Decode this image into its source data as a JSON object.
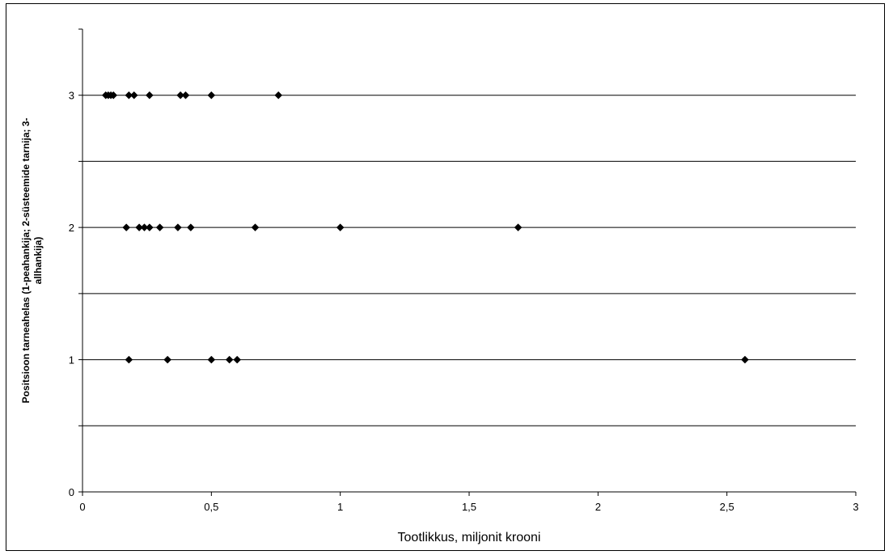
{
  "chart_data": {
    "type": "scatter",
    "xlabel": "Tootlikkus, miljonit krooni",
    "ylabel_lines": [
      "Positsioon tarneahelas (1-peahankija; 2-süsteemide tarnija; 3-",
      "allhankija)"
    ],
    "xlim": [
      0,
      3
    ],
    "ylim": [
      0,
      3.5
    ],
    "x_ticks": [
      0,
      0.5,
      1,
      1.5,
      2,
      2.5,
      3
    ],
    "x_tick_labels": [
      "0",
      "0,5",
      "1",
      "1,5",
      "2",
      "2,5",
      "3"
    ],
    "y_ticks": [
      0,
      1,
      2,
      3
    ],
    "y_tick_labels": [
      "0",
      "1",
      "2",
      "3"
    ],
    "gridlines_y": [
      0.5,
      1,
      1.5,
      2,
      2.5,
      3
    ],
    "grid": true,
    "marker": "diamond",
    "color": "#000000",
    "points": [
      {
        "x": 0.09,
        "y": 3
      },
      {
        "x": 0.1,
        "y": 3
      },
      {
        "x": 0.11,
        "y": 3
      },
      {
        "x": 0.12,
        "y": 3
      },
      {
        "x": 0.18,
        "y": 3
      },
      {
        "x": 0.2,
        "y": 3
      },
      {
        "x": 0.26,
        "y": 3
      },
      {
        "x": 0.38,
        "y": 3
      },
      {
        "x": 0.4,
        "y": 3
      },
      {
        "x": 0.5,
        "y": 3
      },
      {
        "x": 0.76,
        "y": 3
      },
      {
        "x": 0.17,
        "y": 2
      },
      {
        "x": 0.22,
        "y": 2
      },
      {
        "x": 0.24,
        "y": 2
      },
      {
        "x": 0.26,
        "y": 2
      },
      {
        "x": 0.3,
        "y": 2
      },
      {
        "x": 0.37,
        "y": 2
      },
      {
        "x": 0.42,
        "y": 2
      },
      {
        "x": 0.67,
        "y": 2
      },
      {
        "x": 1.0,
        "y": 2
      },
      {
        "x": 1.69,
        "y": 2
      },
      {
        "x": 0.18,
        "y": 1
      },
      {
        "x": 0.33,
        "y": 1
      },
      {
        "x": 0.5,
        "y": 1
      },
      {
        "x": 0.57,
        "y": 1
      },
      {
        "x": 0.6,
        "y": 1
      },
      {
        "x": 2.57,
        "y": 1
      }
    ]
  }
}
